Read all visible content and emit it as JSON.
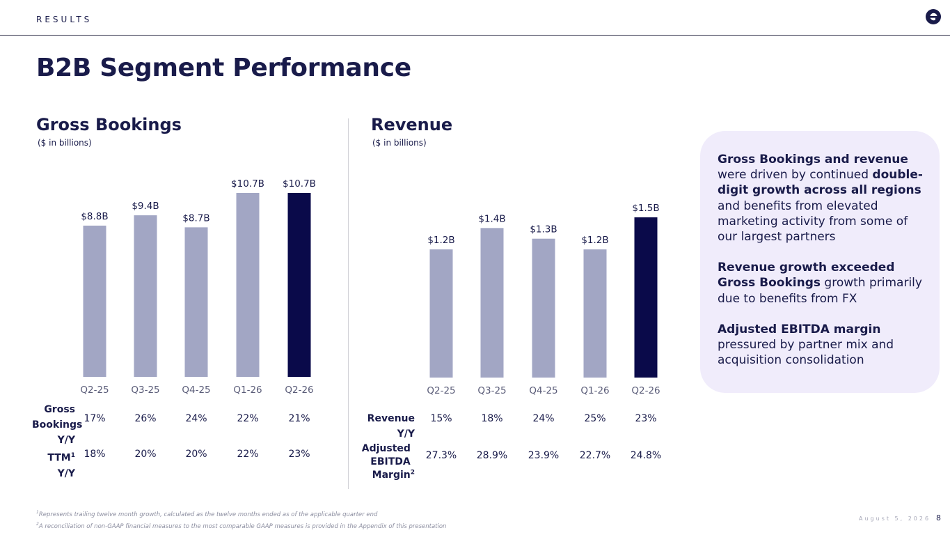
{
  "header": {
    "section_label": "RESULTS",
    "logo_icon": "expedia-e-icon"
  },
  "title": "B2B Segment Performance",
  "colors": {
    "bar_default": "#a2a6c4",
    "bar_highlight": "#0a0a4a",
    "text": "#191b4a",
    "callout_bg": "#f0ecfb"
  },
  "chart_data": [
    {
      "type": "bar",
      "title": "Gross Bookings",
      "subtitle": "($ in billions)",
      "categories": [
        "Q2-25",
        "Q3-25",
        "Q4-25",
        "Q1-26",
        "Q2-26"
      ],
      "values": [
        8.8,
        9.4,
        8.7,
        10.7,
        10.7
      ],
      "labels": [
        "$8.8B",
        "$9.4B",
        "$8.7B",
        "$10.7B",
        "$10.7B"
      ],
      "highlight_index": 4,
      "ylim": [
        0,
        10.7
      ],
      "grid": false,
      "metrics": [
        {
          "label": "Gross Bookings Y/Y",
          "values": [
            "17%",
            "26%",
            "24%",
            "22%",
            "21%"
          ]
        },
        {
          "label": "TTM",
          "sup": "1",
          "label2": "Y/Y",
          "values": [
            "18%",
            "20%",
            "20%",
            "22%",
            "23%"
          ]
        }
      ]
    },
    {
      "type": "bar",
      "title": "Revenue",
      "subtitle": "($ in billions)",
      "categories": [
        "Q2-25",
        "Q3-25",
        "Q4-25",
        "Q1-26",
        "Q2-26"
      ],
      "values": [
        1.2,
        1.4,
        1.3,
        1.2,
        1.5
      ],
      "labels": [
        "$1.2B",
        "$1.4B",
        "$1.3B",
        "$1.2B",
        "$1.5B"
      ],
      "highlight_index": 4,
      "ylim": [
        0,
        1.5
      ],
      "grid": false,
      "metrics": [
        {
          "label": "Revenue Y/Y",
          "values": [
            "15%",
            "18%",
            "24%",
            "25%",
            "23%"
          ]
        },
        {
          "label": "Adjusted EBITDA Margin",
          "sup": "2",
          "values": [
            "27.3%",
            "28.9%",
            "23.9%",
            "22.7%",
            "24.8%"
          ]
        }
      ]
    }
  ],
  "callout": {
    "p1_bold": "Gross Bookings and revenue",
    "p1_text": " were driven by continued ",
    "p1_bold2": "double-digit growth across all regions",
    "p1_text2": " and benefits from elevated marketing activity from some of our largest partners",
    "p2_bold": "Revenue growth exceeded Gross Bookings",
    "p2_text": " growth primarily due to benefits from FX",
    "p3_bold": "Adjusted EBITDA margin",
    "p3_text": " pressured by partner mix and acquisition consolidation"
  },
  "footnotes": {
    "f1_num": "1",
    "f1": "Represents trailing twelve month growth, calculated as the twelve months ended as of the applicable quarter end",
    "f2_num": "2",
    "f2": "A reconciliation of non-GAAP financial measures to the most comparable GAAP measures is provided in the Appendix of this presentation"
  },
  "footer": {
    "date": "August 5, 2026",
    "page": "8"
  }
}
